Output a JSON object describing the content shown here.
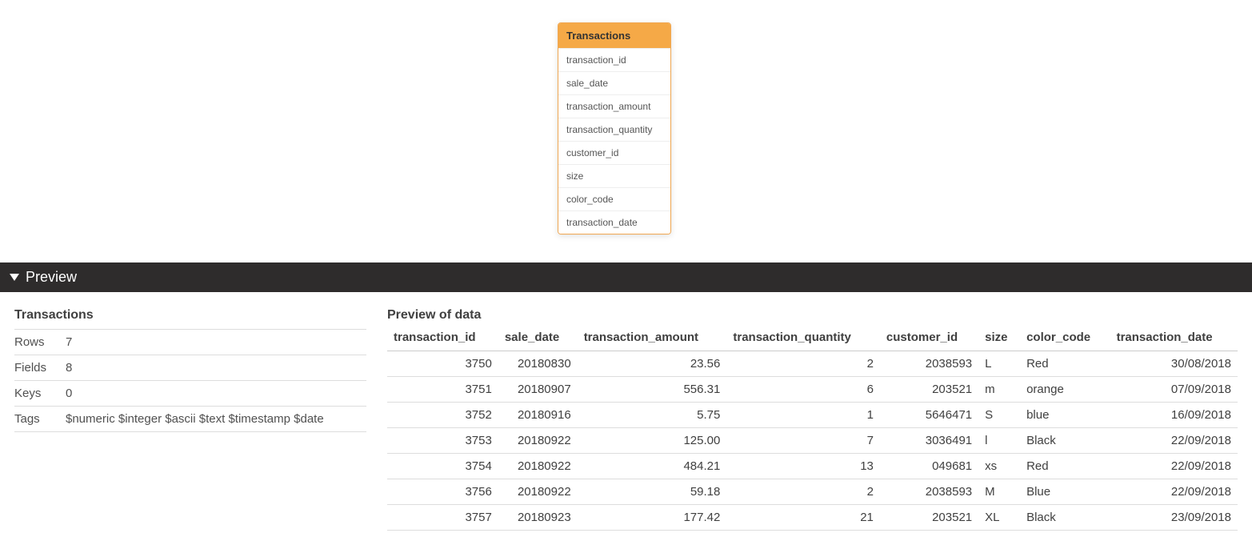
{
  "schema_card": {
    "title": "Transactions",
    "fields": [
      "transaction_id",
      "sale_date",
      "transaction_amount",
      "transaction_quantity",
      "customer_id",
      "size",
      "color_code",
      "transaction_date"
    ],
    "header_bg": "#f5a947",
    "border_color": "#f0a752",
    "field_border_color": "#eeeeee"
  },
  "preview": {
    "bar_title": "Preview",
    "bar_bg": "#2e2c2c",
    "meta": {
      "title": "Transactions",
      "rows_label": "Rows",
      "rows_value": "7",
      "fields_label": "Fields",
      "fields_value": "8",
      "keys_label": "Keys",
      "keys_value": "0",
      "tags_label": "Tags",
      "tags_value": "$numeric $integer $ascii $text $timestamp $date"
    },
    "data": {
      "title": "Preview of data",
      "columns": [
        {
          "key": "transaction_id",
          "label": "transaction_id",
          "align": "right"
        },
        {
          "key": "sale_date",
          "label": "sale_date",
          "align": "right"
        },
        {
          "key": "transaction_amount",
          "label": "transaction_amount",
          "align": "right"
        },
        {
          "key": "transaction_quantity",
          "label": "transaction_quantity",
          "align": "right"
        },
        {
          "key": "customer_id",
          "label": "customer_id",
          "align": "right"
        },
        {
          "key": "size",
          "label": "size",
          "align": "left"
        },
        {
          "key": "color_code",
          "label": "color_code",
          "align": "left"
        },
        {
          "key": "transaction_date",
          "label": "transaction_date",
          "align": "right"
        }
      ],
      "rows": [
        [
          "3750",
          "20180830",
          "23.56",
          "2",
          "2038593",
          "L",
          "Red",
          "30/08/2018"
        ],
        [
          "3751",
          "20180907",
          "556.31",
          "6",
          "203521",
          "m",
          "orange",
          "07/09/2018"
        ],
        [
          "3752",
          "20180916",
          "5.75",
          "1",
          "5646471",
          "S",
          "blue",
          "16/09/2018"
        ],
        [
          "3753",
          "20180922",
          "125.00",
          "7",
          "3036491",
          "l",
          "Black",
          "22/09/2018"
        ],
        [
          "3754",
          "20180922",
          "484.21",
          "13",
          "049681",
          "xs",
          "Red",
          "22/09/2018"
        ],
        [
          "3756",
          "20180922",
          "59.18",
          "2",
          "2038593",
          "M",
          "Blue",
          "22/09/2018"
        ],
        [
          "3757",
          "20180923",
          "177.42",
          "21",
          "203521",
          "XL",
          "Black",
          "23/09/2018"
        ]
      ]
    }
  }
}
